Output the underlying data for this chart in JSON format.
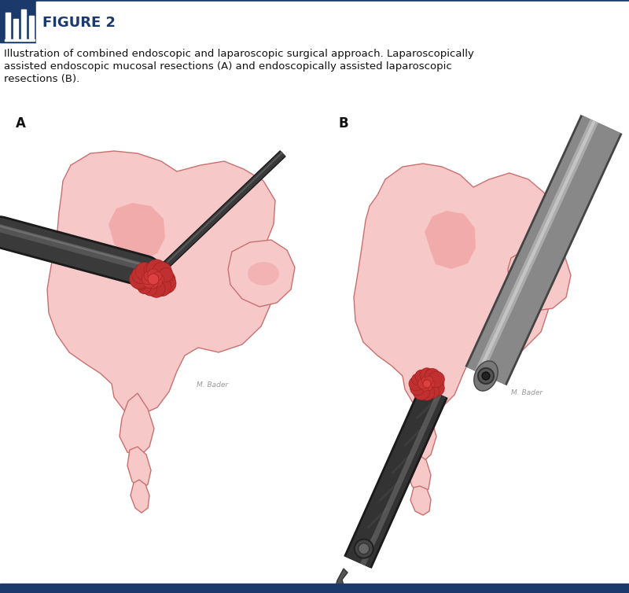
{
  "bg_color": "#ffffff",
  "header_bg": "#1b3a6b",
  "header_text": "FIGURE 2",
  "top_line_color": "#1b3a6b",
  "bottom_line_color": "#1b3a6b",
  "caption_line1": "Illustration of combined endoscopic and laparoscopic surgical approach. Laparoscopically",
  "caption_line2": "assisted endoscopic mucosal resections (A) and endoscopically assisted laparoscopic",
  "caption_line3": "resections (B).",
  "label_A": "A",
  "label_B": "B",
  "pink_light": "#f7c8c8",
  "pink_mid": "#f0a0a0",
  "pink_dark": "#e87878",
  "pink_edge": "#c87070",
  "dark": "#222222",
  "gray_dark": "#555555",
  "gray_mid": "#888888",
  "gray_light": "#bbbbbb",
  "red_tumor": "#c03030",
  "red_tumor2": "#a02020"
}
